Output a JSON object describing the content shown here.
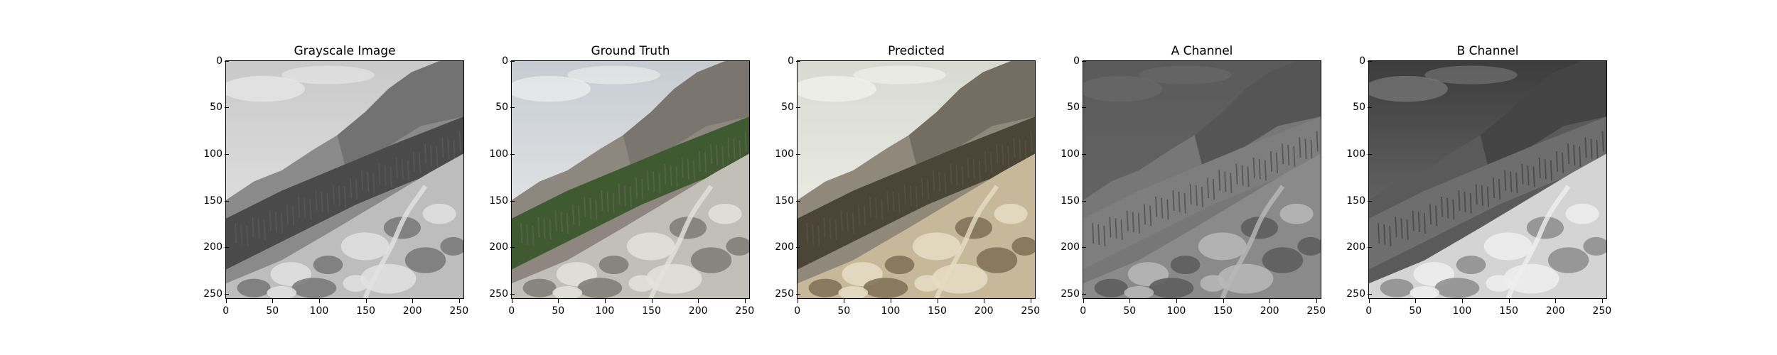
{
  "panels": [
    {
      "id": "grayscale",
      "title": "Grayscale Image",
      "palette": "gray"
    },
    {
      "id": "ground-truth",
      "title": "Ground Truth",
      "palette": "color"
    },
    {
      "id": "predicted",
      "title": "Predicted",
      "palette": "tan"
    },
    {
      "id": "a-channel",
      "title": "A Channel",
      "palette": "channel-a"
    },
    {
      "id": "b-channel",
      "title": "B Channel",
      "palette": "channel-b"
    }
  ],
  "axes": {
    "x_ticks": [
      "0",
      "50",
      "100",
      "150",
      "200",
      "250"
    ],
    "y_ticks": [
      "0",
      "50",
      "100",
      "150",
      "200",
      "250"
    ],
    "range": [
      0,
      256
    ]
  },
  "colors": {
    "sky_color": "#eef0ee",
    "forest_color": "#3f5a30",
    "rock_color": "#c8b89a"
  }
}
